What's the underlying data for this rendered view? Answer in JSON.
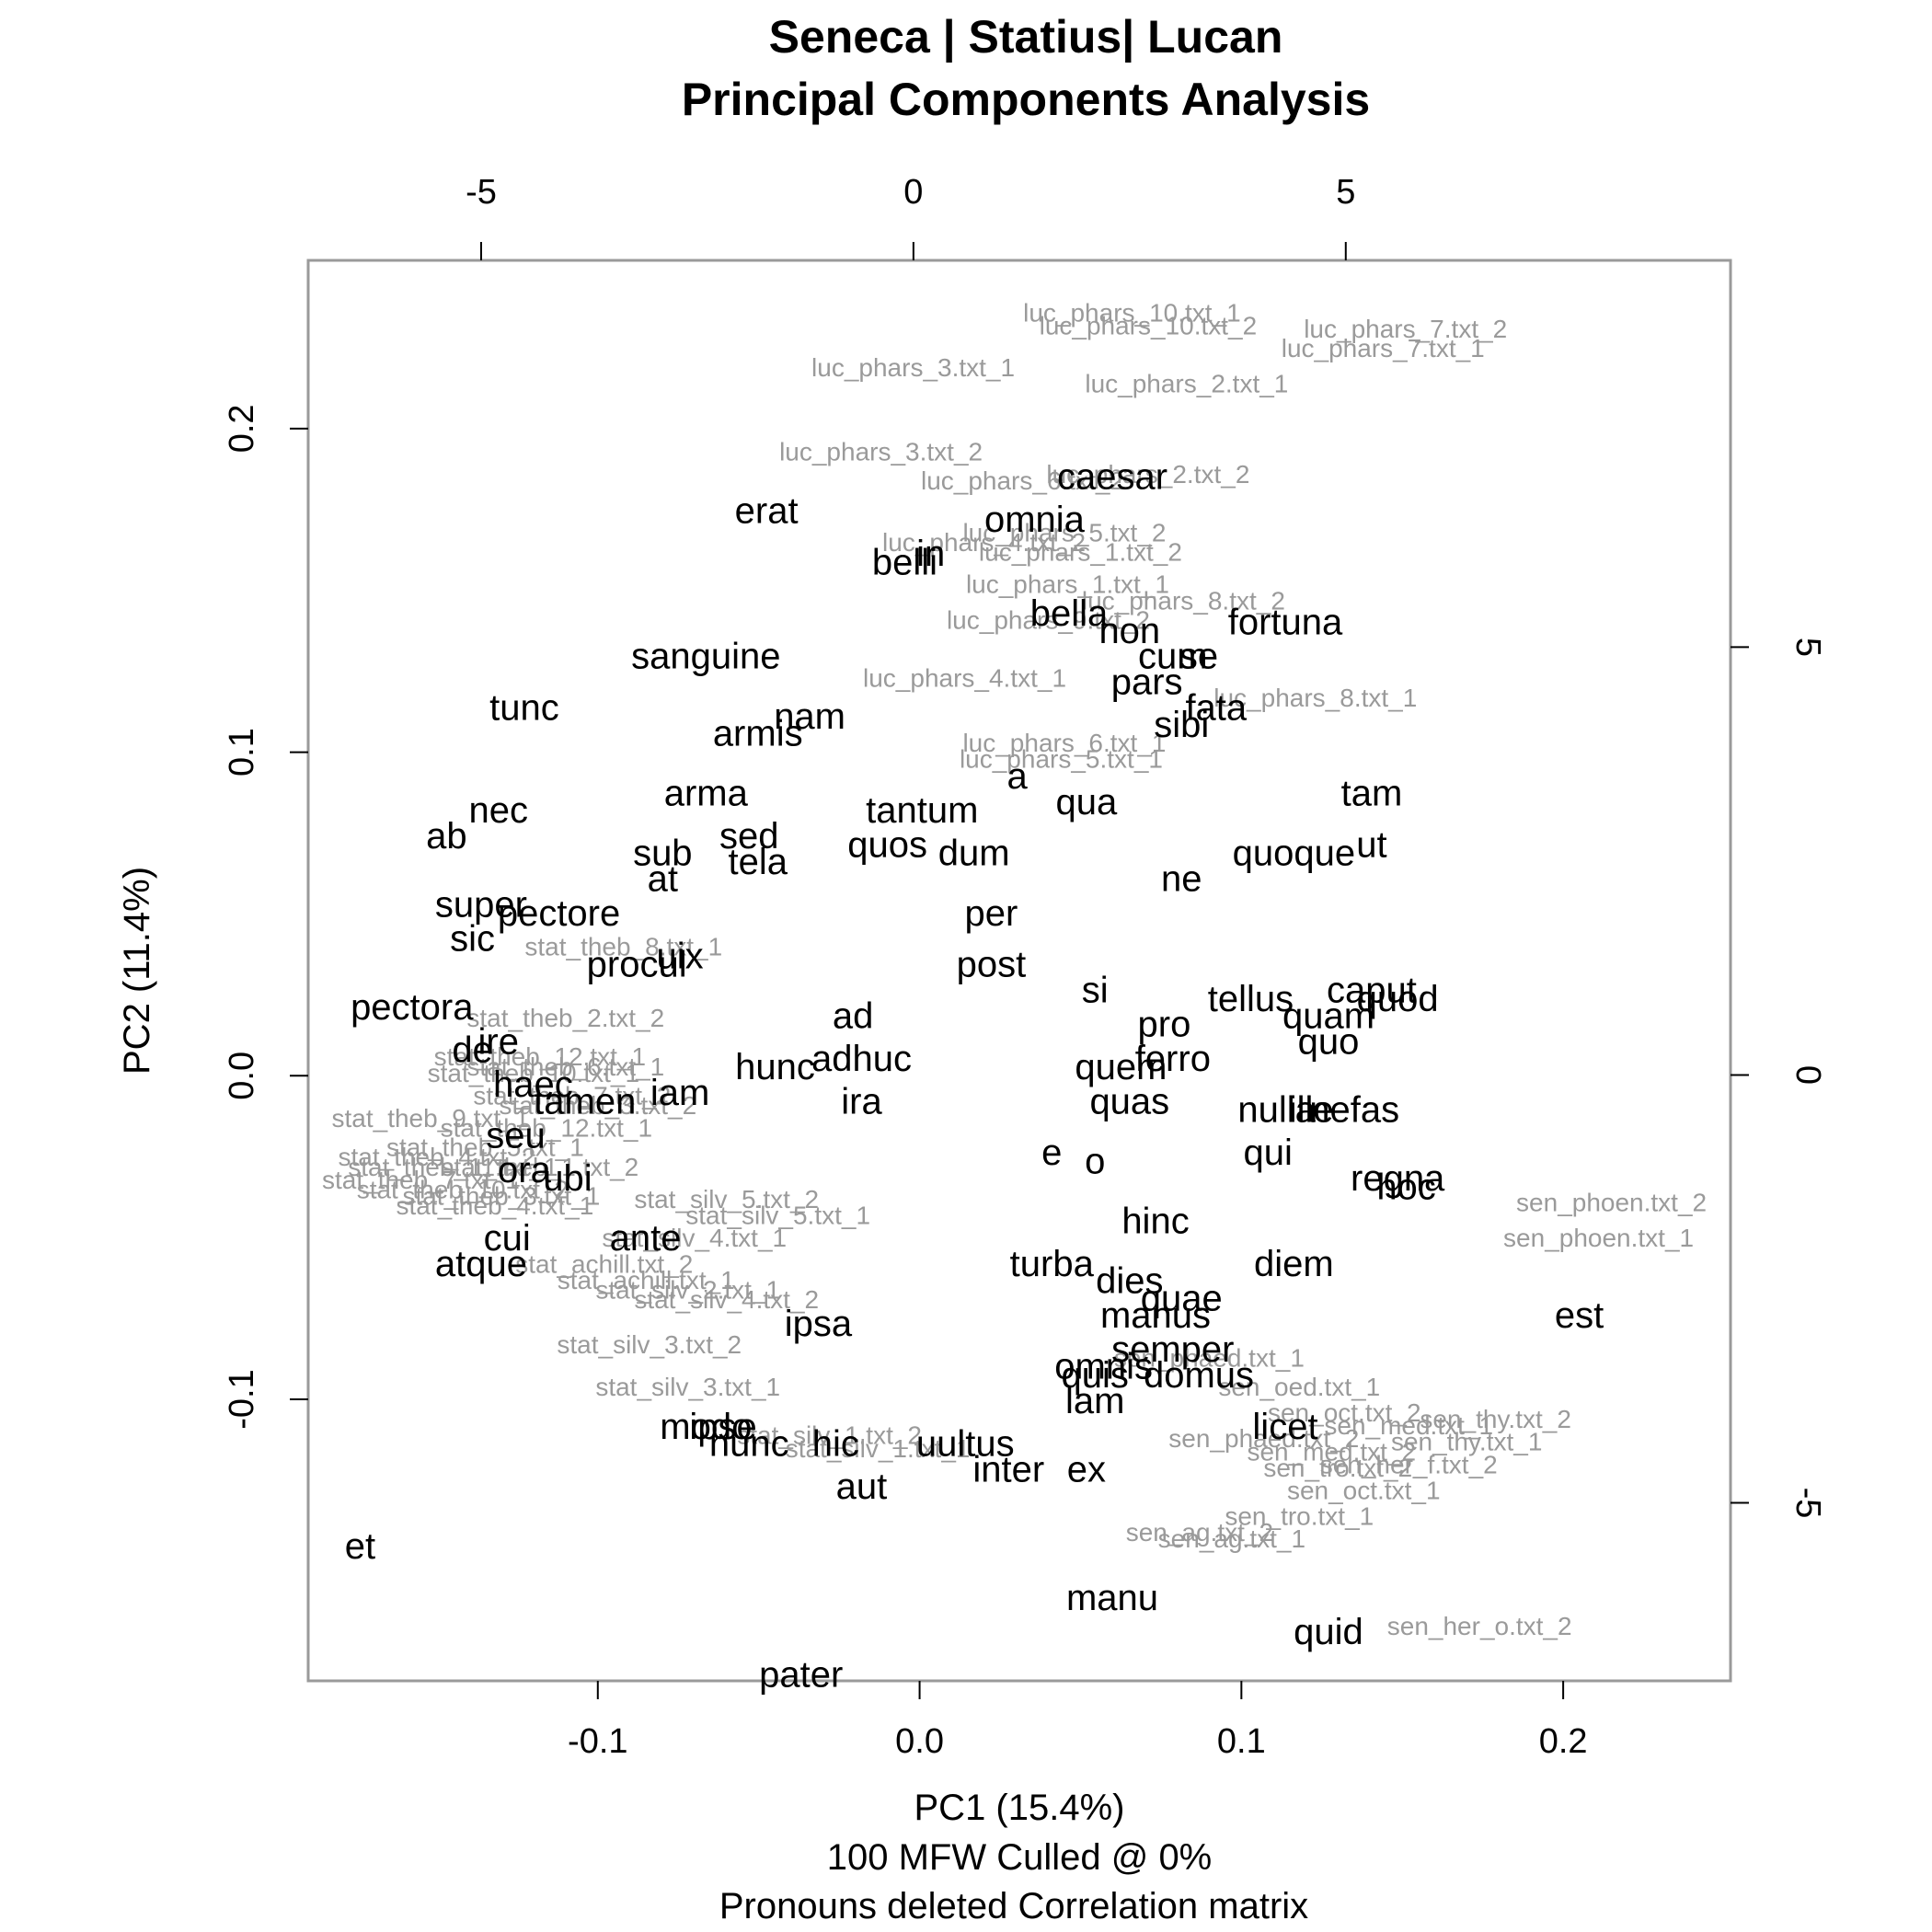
{
  "chart_data": {
    "type": "scatter",
    "title": [
      "Seneca | Statius| Lucan",
      "Principal Components Analysis"
    ],
    "xlabel": "PC1 (15.4%)",
    "ylabel": "PC2 (11.4%)",
    "subtitle": [
      "100 MFW  Culled @ 0%",
      "Pronouns deleted Correlation matrix"
    ],
    "xlim": [
      -0.19,
      0.252
    ],
    "ylim": [
      -0.187,
      0.252
    ],
    "grid": false,
    "x_ticks": [
      -0.1,
      0.0,
      0.1,
      0.2
    ],
    "x_tick_labels": [
      "-0.1",
      "0.0",
      "0.1",
      "0.2"
    ],
    "y_ticks": [
      -0.1,
      0.0,
      0.1,
      0.2
    ],
    "y_tick_labels": [
      "-0.1",
      "0.0",
      "0.1",
      "0.2"
    ],
    "top_axis": {
      "lim": [
        -7.0,
        9.45
      ],
      "ticks": [
        -5,
        0,
        5
      ],
      "tick_labels": [
        "-5",
        "0",
        "5"
      ]
    },
    "right_axis": {
      "lim": [
        -7.08,
        9.52
      ],
      "ticks": [
        -5,
        0,
        5
      ],
      "tick_labels": [
        "-5",
        "0",
        "5"
      ]
    },
    "series": [
      {
        "name": "texts",
        "color": "#9a9a9a",
        "points": [
          {
            "label": "luc_phars_10.txt_1",
            "x": 0.066,
            "y": 0.236
          },
          {
            "label": "luc_phars_10.txt_2",
            "x": 0.071,
            "y": 0.232
          },
          {
            "label": "luc_phars_7.txt_2",
            "x": 0.151,
            "y": 0.231
          },
          {
            "label": "luc_phars_7.txt_1",
            "x": 0.144,
            "y": 0.225
          },
          {
            "label": "luc_phars_3.txt_1",
            "x": -0.002,
            "y": 0.219
          },
          {
            "label": "luc_phars_2.txt_1",
            "x": 0.083,
            "y": 0.214
          },
          {
            "label": "luc_phars_3.txt_2",
            "x": -0.012,
            "y": 0.193
          },
          {
            "label": "luc_phars_2.txt_2",
            "x": 0.071,
            "y": 0.186
          },
          {
            "label": "luc_phars_6.txt_2",
            "x": 0.032,
            "y": 0.184
          },
          {
            "label": "luc_phars_5.txt_2",
            "x": 0.045,
            "y": 0.168
          },
          {
            "label": "luc_phars_4.txt_2",
            "x": 0.02,
            "y": 0.165
          },
          {
            "label": "luc_phars_1.txt_2",
            "x": 0.05,
            "y": 0.162
          },
          {
            "label": "luc_phars_1.txt_1",
            "x": 0.046,
            "y": 0.152
          },
          {
            "label": "luc_phars_8.txt_2",
            "x": 0.082,
            "y": 0.147
          },
          {
            "label": "luc_phars_9.txt_2",
            "x": 0.04,
            "y": 0.141
          },
          {
            "label": "luc_phars_4.txt_1",
            "x": 0.014,
            "y": 0.123
          },
          {
            "label": "luc_phars_8.txt_1",
            "x": 0.123,
            "y": 0.117
          },
          {
            "label": "luc_phars_6.txt_1",
            "x": 0.045,
            "y": 0.103
          },
          {
            "label": "luc_phars_5.txt_1",
            "x": 0.044,
            "y": 0.098
          },
          {
            "label": "stat_theb_8.txt_1",
            "x": -0.092,
            "y": 0.04
          },
          {
            "label": "stat_theb_2.txt_2",
            "x": -0.11,
            "y": 0.018
          },
          {
            "label": "stat_theb_12.txt_1",
            "x": -0.118,
            "y": 0.006
          },
          {
            "label": "stat_theb_6.txt_1",
            "x": -0.11,
            "y": 0.003
          },
          {
            "label": "stat_theb_10.txt_1",
            "x": -0.12,
            "y": 0.001
          },
          {
            "label": "stat_theb_7.txt_2",
            "x": -0.108,
            "y": -0.006
          },
          {
            "label": "stat_theb_3.txt_2",
            "x": -0.1,
            "y": -0.009
          },
          {
            "label": "stat_theb_9.txt_1",
            "x": -0.152,
            "y": -0.013
          },
          {
            "label": "stat_theb_12.txt_1",
            "x": -0.116,
            "y": -0.016
          },
          {
            "label": "stat_theb_5.txt_1",
            "x": -0.135,
            "y": -0.022
          },
          {
            "label": "stat_theb_4.txt_2",
            "x": -0.15,
            "y": -0.025
          },
          {
            "label": "stat_theb_11.txt_1",
            "x": -0.145,
            "y": -0.028
          },
          {
            "label": "stat_theb_1.txt_2",
            "x": -0.118,
            "y": -0.028
          },
          {
            "label": "stat_theb_7.txt_1",
            "x": -0.155,
            "y": -0.032
          },
          {
            "label": "stat_theb_10.txt_2",
            "x": -0.142,
            "y": -0.035
          },
          {
            "label": "stat_theb_3.txt_1",
            "x": -0.13,
            "y": -0.037
          },
          {
            "label": "stat_silv_5.txt_2",
            "x": -0.06,
            "y": -0.038
          },
          {
            "label": "stat_theb_4.txt_1",
            "x": -0.132,
            "y": -0.04
          },
          {
            "label": "stat_silv_5.txt_1",
            "x": -0.044,
            "y": -0.043
          },
          {
            "label": "stat_silv_4.txt_1",
            "x": -0.07,
            "y": -0.05
          },
          {
            "label": "stat_achill.txt_2",
            "x": -0.098,
            "y": -0.058
          },
          {
            "label": "stat_achill.txt_1",
            "x": -0.085,
            "y": -0.063
          },
          {
            "label": "stat_silv_2.txt_1",
            "x": -0.072,
            "y": -0.066
          },
          {
            "label": "stat_silv_4.txt_2",
            "x": -0.06,
            "y": -0.069
          },
          {
            "label": "stat_silv_3.txt_2",
            "x": -0.084,
            "y": -0.083
          },
          {
            "label": "stat_silv_3.txt_1",
            "x": -0.072,
            "y": -0.096
          },
          {
            "label": "stat_silv_1.txt_2",
            "x": -0.028,
            "y": -0.111
          },
          {
            "label": "stat_silv_1.txt_1",
            "x": -0.013,
            "y": -0.115
          },
          {
            "label": "sen_phoen.txt_2",
            "x": 0.215,
            "y": -0.039
          },
          {
            "label": "sen_phoen.txt_1",
            "x": 0.211,
            "y": -0.05
          },
          {
            "label": "sen_phaed.txt_1",
            "x": 0.09,
            "y": -0.087
          },
          {
            "label": "sen_oed.txt_1",
            "x": 0.118,
            "y": -0.096
          },
          {
            "label": "sen_oct.txt_2",
            "x": 0.132,
            "y": -0.104
          },
          {
            "label": "sen_thy.txt_2",
            "x": 0.179,
            "y": -0.106
          },
          {
            "label": "sen_med.txt_1",
            "x": 0.152,
            "y": -0.108
          },
          {
            "label": "sen_phaed.txt_2",
            "x": 0.107,
            "y": -0.112
          },
          {
            "label": "sen_thy.txt_1",
            "x": 0.17,
            "y": -0.113
          },
          {
            "label": "sen_med.txt_2",
            "x": 0.128,
            "y": -0.116
          },
          {
            "label": "sen_tro.txt_2",
            "x": 0.13,
            "y": -0.121
          },
          {
            "label": "sen_her_f.txt_2",
            "x": 0.152,
            "y": -0.12
          },
          {
            "label": "sen_oct.txt_1",
            "x": 0.138,
            "y": -0.128
          },
          {
            "label": "sen_tro.txt_1",
            "x": 0.118,
            "y": -0.136
          },
          {
            "label": "sen_ag.txt_2",
            "x": 0.087,
            "y": -0.141
          },
          {
            "label": "sen_ag.txt_1",
            "x": 0.097,
            "y": -0.143
          },
          {
            "label": "sen_her_o.txt_2",
            "x": 0.174,
            "y": -0.17
          }
        ]
      },
      {
        "name": "words",
        "color": "#000000",
        "points": [
          {
            "label": "caesar",
            "x": 2.3,
            "y": 7.0
          },
          {
            "label": "erat",
            "x": -1.7,
            "y": 6.6
          },
          {
            "label": "omnia",
            "x": 1.4,
            "y": 6.5
          },
          {
            "label": "belli",
            "x": -0.1,
            "y": 6.0
          },
          {
            "label": "in",
            "x": 0.2,
            "y": 6.1
          },
          {
            "label": "bella",
            "x": 1.8,
            "y": 5.4
          },
          {
            "label": "non",
            "x": 2.5,
            "y": 5.2
          },
          {
            "label": "fortuna",
            "x": 4.3,
            "y": 5.3
          },
          {
            "label": "cum",
            "x": 3.0,
            "y": 4.9
          },
          {
            "label": "se",
            "x": 3.3,
            "y": 4.9
          },
          {
            "label": "pars",
            "x": 2.7,
            "y": 4.6
          },
          {
            "label": "fata",
            "x": 3.5,
            "y": 4.3
          },
          {
            "label": "sibi",
            "x": 3.1,
            "y": 4.1
          },
          {
            "label": "sanguine",
            "x": -2.4,
            "y": 4.9
          },
          {
            "label": "tunc",
            "x": -4.5,
            "y": 4.3
          },
          {
            "label": "nam",
            "x": -1.2,
            "y": 4.2
          },
          {
            "label": "armis",
            "x": -1.8,
            "y": 4.0
          },
          {
            "label": "a",
            "x": 1.2,
            "y": 3.5
          },
          {
            "label": "tam",
            "x": 5.3,
            "y": 3.3
          },
          {
            "label": "arma",
            "x": -2.4,
            "y": 3.3
          },
          {
            "label": "qua",
            "x": 2.0,
            "y": 3.2
          },
          {
            "label": "tantum",
            "x": 0.1,
            "y": 3.1
          },
          {
            "label": "nec",
            "x": -4.8,
            "y": 3.1
          },
          {
            "label": "ab",
            "x": -5.4,
            "y": 2.8
          },
          {
            "label": "sed",
            "x": -1.9,
            "y": 2.8
          },
          {
            "label": "quos",
            "x": -0.3,
            "y": 2.7
          },
          {
            "label": "sub",
            "x": -2.9,
            "y": 2.6
          },
          {
            "label": "dum",
            "x": 0.7,
            "y": 2.6
          },
          {
            "label": "ut",
            "x": 5.3,
            "y": 2.7
          },
          {
            "label": "quoque",
            "x": 4.4,
            "y": 2.6
          },
          {
            "label": "tela",
            "x": -1.8,
            "y": 2.5
          },
          {
            "label": "at",
            "x": -2.9,
            "y": 2.3
          },
          {
            "label": "ne",
            "x": 3.1,
            "y": 2.3
          },
          {
            "label": "super",
            "x": -5.0,
            "y": 2.0
          },
          {
            "label": "pectore",
            "x": -4.1,
            "y": 1.9
          },
          {
            "label": "per",
            "x": 0.9,
            "y": 1.9
          },
          {
            "label": "sic",
            "x": -5.1,
            "y": 1.6
          },
          {
            "label": "uix",
            "x": -2.7,
            "y": 1.4
          },
          {
            "label": "procul",
            "x": -3.2,
            "y": 1.3
          },
          {
            "label": "post",
            "x": 0.9,
            "y": 1.3
          },
          {
            "label": "si",
            "x": 2.1,
            "y": 1.0
          },
          {
            "label": "tellus",
            "x": 3.9,
            "y": 0.9
          },
          {
            "label": "caput",
            "x": 5.3,
            "y": 1.0
          },
          {
            "label": "quod",
            "x": 5.6,
            "y": 0.9
          },
          {
            "label": "quam",
            "x": 4.8,
            "y": 0.7
          },
          {
            "label": "pectora",
            "x": -5.8,
            "y": 0.8
          },
          {
            "label": "ad",
            "x": -0.7,
            "y": 0.7
          },
          {
            "label": "pro",
            "x": 2.9,
            "y": 0.6
          },
          {
            "label": "ire",
            "x": -4.8,
            "y": 0.4
          },
          {
            "label": "quo",
            "x": 4.8,
            "y": 0.4
          },
          {
            "label": "de",
            "x": -5.1,
            "y": 0.3
          },
          {
            "label": "hunc",
            "x": -1.6,
            "y": 0.1
          },
          {
            "label": "adhuc",
            "x": -0.6,
            "y": 0.2
          },
          {
            "label": "quem",
            "x": 2.4,
            "y": 0.1
          },
          {
            "label": "ferro",
            "x": 3.0,
            "y": 0.2
          },
          {
            "label": "haec",
            "x": -4.4,
            "y": -0.1
          },
          {
            "label": "iam",
            "x": -2.7,
            "y": -0.2
          },
          {
            "label": "tamen",
            "x": -3.8,
            "y": -0.3
          },
          {
            "label": "ira",
            "x": -0.6,
            "y": -0.3
          },
          {
            "label": "quas",
            "x": 2.5,
            "y": -0.3
          },
          {
            "label": "nulla",
            "x": 4.2,
            "y": -0.4
          },
          {
            "label": "ille",
            "x": 4.6,
            "y": -0.4
          },
          {
            "label": "nefas",
            "x": 5.1,
            "y": -0.4
          },
          {
            "label": "seu",
            "x": -4.6,
            "y": -0.7
          },
          {
            "label": "e",
            "x": 1.6,
            "y": -0.9
          },
          {
            "label": "o",
            "x": 2.1,
            "y": -1.0
          },
          {
            "label": "qui",
            "x": 4.1,
            "y": -0.9
          },
          {
            "label": "ora",
            "x": -4.5,
            "y": -1.1
          },
          {
            "label": "ubi",
            "x": -4.0,
            "y": -1.2
          },
          {
            "label": "regna",
            "x": 5.6,
            "y": -1.2
          },
          {
            "label": "hoc",
            "x": 5.7,
            "y": -1.3
          },
          {
            "label": "hinc",
            "x": 2.8,
            "y": -1.7
          },
          {
            "label": "cui",
            "x": -4.7,
            "y": -1.9
          },
          {
            "label": "ante",
            "x": -3.1,
            "y": -1.9
          },
          {
            "label": "atque",
            "x": -5.0,
            "y": -2.2
          },
          {
            "label": "turba",
            "x": 1.6,
            "y": -2.2
          },
          {
            "label": "diem",
            "x": 4.4,
            "y": -2.2
          },
          {
            "label": "est",
            "x": 7.7,
            "y": -2.8
          },
          {
            "label": "dies",
            "x": 2.5,
            "y": -2.4
          },
          {
            "label": "quae",
            "x": 3.1,
            "y": -2.6
          },
          {
            "label": "manus",
            "x": 2.8,
            "y": -2.8
          },
          {
            "label": "ipsa",
            "x": -1.1,
            "y": -2.9
          },
          {
            "label": "semper",
            "x": 3.0,
            "y": -3.2
          },
          {
            "label": "omnis",
            "x": 2.2,
            "y": -3.4
          },
          {
            "label": "domus",
            "x": 3.3,
            "y": -3.5
          },
          {
            "label": "quis",
            "x": 2.1,
            "y": -3.5
          },
          {
            "label": "lam",
            "x": 2.1,
            "y": -3.8
          },
          {
            "label": "licet",
            "x": 4.3,
            "y": -4.1
          },
          {
            "label": "modo",
            "x": -2.4,
            "y": -4.1
          },
          {
            "label": "ipse",
            "x": -2.2,
            "y": -4.1
          },
          {
            "label": "nunc",
            "x": -1.9,
            "y": -4.3
          },
          {
            "label": "hic",
            "x": -0.9,
            "y": -4.3
          },
          {
            "label": "uultus",
            "x": 0.6,
            "y": -4.3
          },
          {
            "label": "ex",
            "x": 2.0,
            "y": -4.6
          },
          {
            "label": "inter",
            "x": 1.1,
            "y": -4.6
          },
          {
            "label": "aut",
            "x": -0.6,
            "y": -4.8
          },
          {
            "label": "et",
            "x": -6.4,
            "y": -5.5
          },
          {
            "label": "manu",
            "x": 2.3,
            "y": -6.1
          },
          {
            "label": "quid",
            "x": 4.8,
            "y": -6.5
          },
          {
            "label": "pater",
            "x": -1.3,
            "y": -7.0
          }
        ]
      }
    ]
  }
}
